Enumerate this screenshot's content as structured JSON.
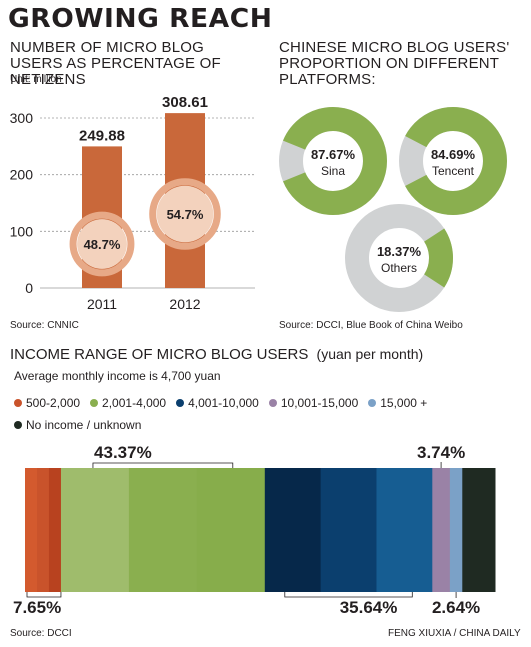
{
  "title": "GROWING REACH",
  "credit": "FENG XIUXIA / CHINA DAILY",
  "colors": {
    "bar": "#c9683a",
    "circle": "#e7a987",
    "green": "#8aaf4f",
    "grey": "#d0d2d3",
    "text": "#231f20"
  },
  "chart_data": [
    {
      "type": "bar",
      "title": "NUMBER OF MICRO BLOG USERS AS PERCENTAGE OF NETIZENS",
      "subtitle": "Unit: million",
      "categories": [
        "2011",
        "2012"
      ],
      "values": [
        249.88,
        308.61
      ],
      "value_labels": [
        "249.88",
        "308.61"
      ],
      "percent_of_netizens": [
        48.7,
        54.7
      ],
      "percent_labels": [
        "48.7%",
        "54.7%"
      ],
      "yticks": [
        "0",
        "100",
        "200",
        "300"
      ],
      "ylim": [
        0,
        310
      ],
      "grid": true,
      "source": "Source: CNNIC"
    },
    {
      "type": "pie",
      "title": "CHINESE MICRO BLOG USERS' PROPORTION ON DIFFERENT PLATFORMS:",
      "slices": [
        {
          "name": "Sina",
          "value": 87.67,
          "label": "87.67%"
        },
        {
          "name": "Tencent",
          "value": 84.69,
          "label": "84.69%"
        },
        {
          "name": "Others",
          "value": 18.37,
          "label": "18.37%"
        }
      ],
      "source": "Source: DCCI, Blue Book of China Weibo"
    },
    {
      "type": "bar",
      "title": "INCOME RANGE OF MICRO BLOG USERS",
      "title_unit": "(yuan per month)",
      "subtitle": "Average monthly income is 4,700 yuan",
      "categories": [
        "500-2,000",
        "2,001-4,000",
        "4,001-10,000",
        "10,001-15,000",
        "15,000 +",
        "No income / unknown"
      ],
      "values": [
        7.65,
        43.37,
        35.64,
        3.74,
        2.64,
        6.96
      ],
      "value_labels": [
        "7.65%",
        "43.37%",
        "35.64%",
        "3.74%",
        "2.64%",
        ""
      ],
      "colors": [
        "#c9532b",
        "#8aaf4f",
        "#0b3f6e",
        "#9a82a6",
        "#7ba1c7",
        "#1f2a22"
      ],
      "source": "Source: DCCI"
    }
  ]
}
